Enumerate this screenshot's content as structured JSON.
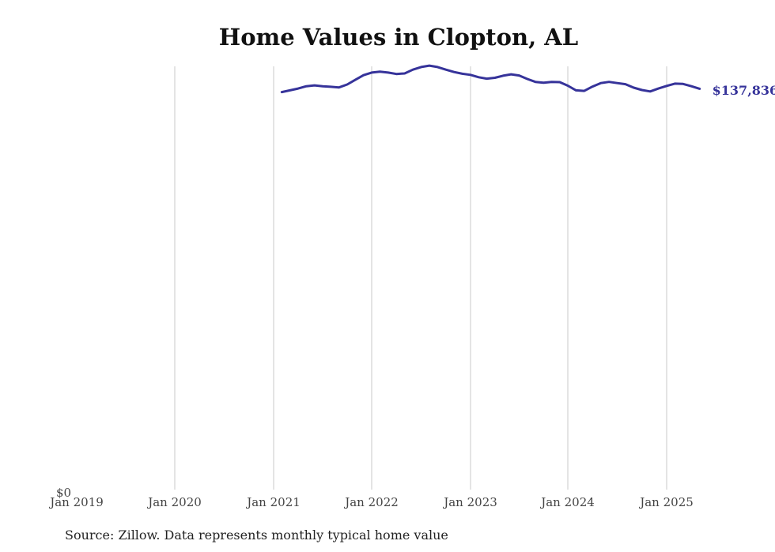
{
  "chart_data": {
    "type": "line",
    "title": "Home Values in Clopton, AL",
    "xlabel": "",
    "ylabel": "",
    "ylim": [
      0,
      145000
    ],
    "ytick_labels": [
      "$0"
    ],
    "xtick_labels": [
      "Jan 2019",
      "Jan 2020",
      "Jan 2021",
      "Jan 2022",
      "Jan 2023",
      "Jan 2024",
      "Jan 2025"
    ],
    "grid": "vertical",
    "line_color": "#36339a",
    "end_label": "$137,836",
    "x": [
      "2021-02",
      "2021-03",
      "2021-04",
      "2021-05",
      "2021-06",
      "2021-07",
      "2021-08",
      "2021-09",
      "2021-10",
      "2021-11",
      "2021-12",
      "2022-01",
      "2022-02",
      "2022-03",
      "2022-04",
      "2022-05",
      "2022-06",
      "2022-07",
      "2022-08",
      "2022-09",
      "2022-10",
      "2022-11",
      "2022-12",
      "2023-01",
      "2023-02",
      "2023-03",
      "2023-04",
      "2023-05",
      "2023-06",
      "2023-07",
      "2023-08",
      "2023-09",
      "2023-10",
      "2023-11",
      "2023-12",
      "2024-01",
      "2024-02",
      "2024-03",
      "2024-04",
      "2024-05",
      "2024-06",
      "2024-07",
      "2024-08",
      "2024-09",
      "2024-10",
      "2024-11",
      "2024-12",
      "2025-01",
      "2025-02",
      "2025-03",
      "2025-04",
      "2025-05"
    ],
    "y": [
      136700,
      137300,
      137900,
      138700,
      139000,
      138700,
      138500,
      138300,
      139300,
      140900,
      142500,
      143400,
      143700,
      143400,
      142900,
      143100,
      144400,
      145300,
      145800,
      145300,
      144400,
      143600,
      143000,
      142600,
      141800,
      141300,
      141600,
      142300,
      142800,
      142400,
      141200,
      140200,
      139900,
      140200,
      140100,
      138900,
      137300,
      137100,
      138600,
      139800,
      140200,
      139800,
      139400,
      138200,
      137400,
      136900,
      137900,
      138800,
      139600,
      139500,
      138700,
      137836
    ]
  },
  "source_note": "Source: Zillow. Data represents monthly typical home value"
}
